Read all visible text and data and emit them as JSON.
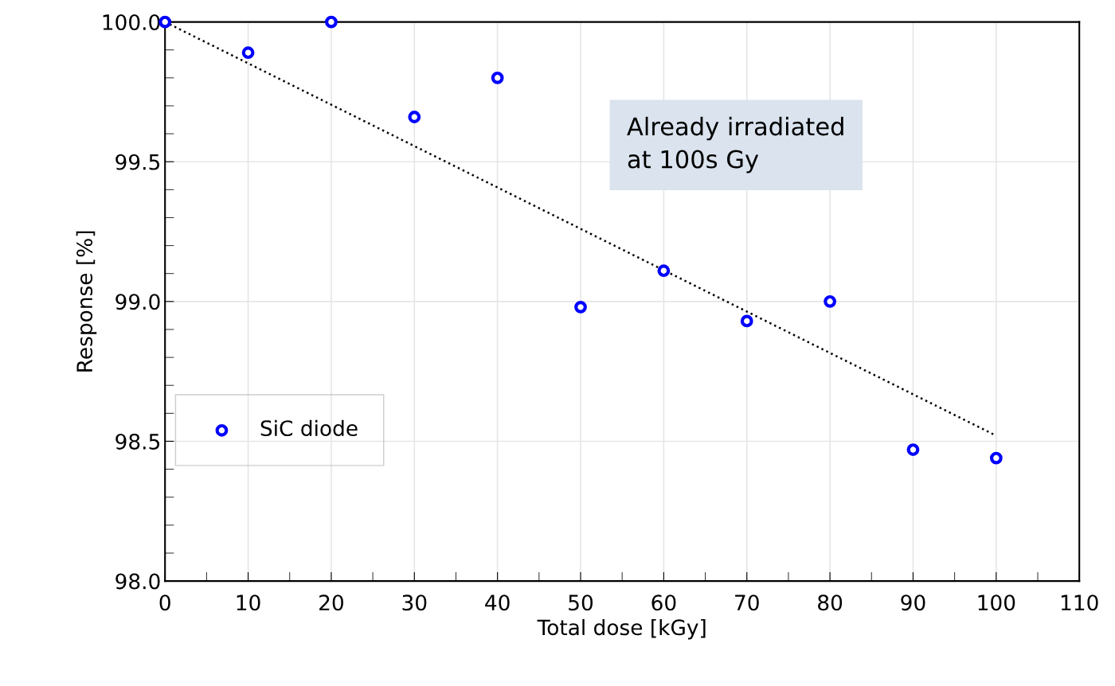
{
  "chart_data": {
    "type": "scatter",
    "xlabel": "Total dose [kGy]",
    "ylabel": "Response [%]",
    "x": [
      0,
      10,
      20,
      30,
      40,
      50,
      60,
      70,
      80,
      90,
      100
    ],
    "series": [
      {
        "name": "SiC diode",
        "color": "#0000ff",
        "marker": "circle",
        "values": [
          100.0,
          99.89,
          100.0,
          99.66,
          99.8,
          98.98,
          99.11,
          98.93,
          99.0,
          98.47,
          98.44
        ]
      },
      {
        "type": "line",
        "x": [
          0,
          100
        ],
        "color": "#000000",
        "line_style": "dotted",
        "marker": "none",
        "values": [
          100.0,
          98.52
        ]
      }
    ],
    "xlim": [
      0,
      110
    ],
    "xticks": [
      0,
      10,
      20,
      30,
      40,
      50,
      60,
      70,
      80,
      90,
      100,
      110
    ],
    "ylim": [
      98.0,
      100.0
    ],
    "yticks": [
      {
        "value": 98.0,
        "label": "98.0"
      },
      {
        "value": 98.5,
        "label": "98.5"
      },
      {
        "value": 99.0,
        "label": "99.0"
      },
      {
        "value": 99.5,
        "label": "99.5"
      },
      {
        "value": 100.0,
        "label": "100.0"
      }
    ],
    "grid": true,
    "legend": "center left",
    "annotations": [
      "Already irradiated\nat 100s Gy"
    ]
  }
}
